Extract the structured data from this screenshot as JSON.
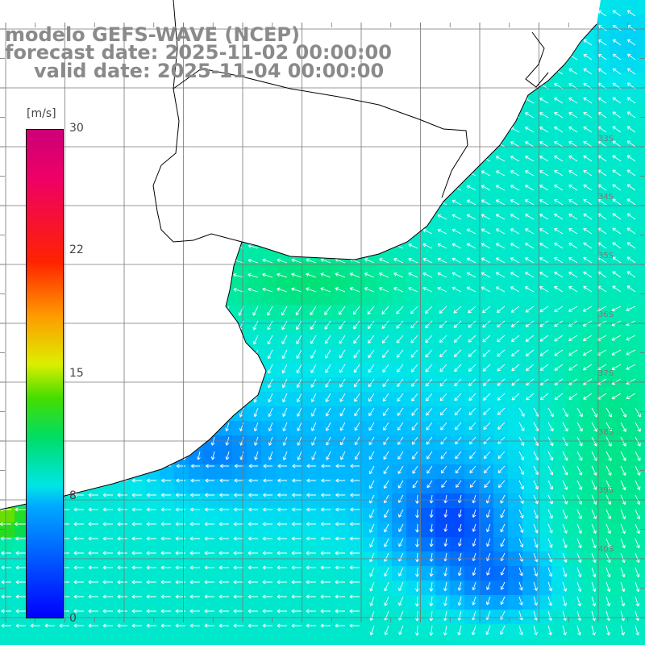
{
  "title": {
    "model": "modelo GEFS-WAVE (NCEP)",
    "forecast": "forecast date: 2025-11-02 00:00:00",
    "valid": "valid date: 2025-11-04 00:00:00"
  },
  "colorbar": {
    "unit": "[m/s]",
    "ticks": [
      "30",
      "22",
      "15",
      "8",
      "0"
    ],
    "min": 0,
    "max": 30
  },
  "lat_labels": [
    "33S",
    "34S",
    "35S",
    "36S",
    "37S",
    "38S",
    "39S",
    "40S"
  ],
  "colors": {
    "land": "#ffffff",
    "grid": "#777777",
    "coast": "#000000",
    "arrow": "#ffffff"
  }
}
